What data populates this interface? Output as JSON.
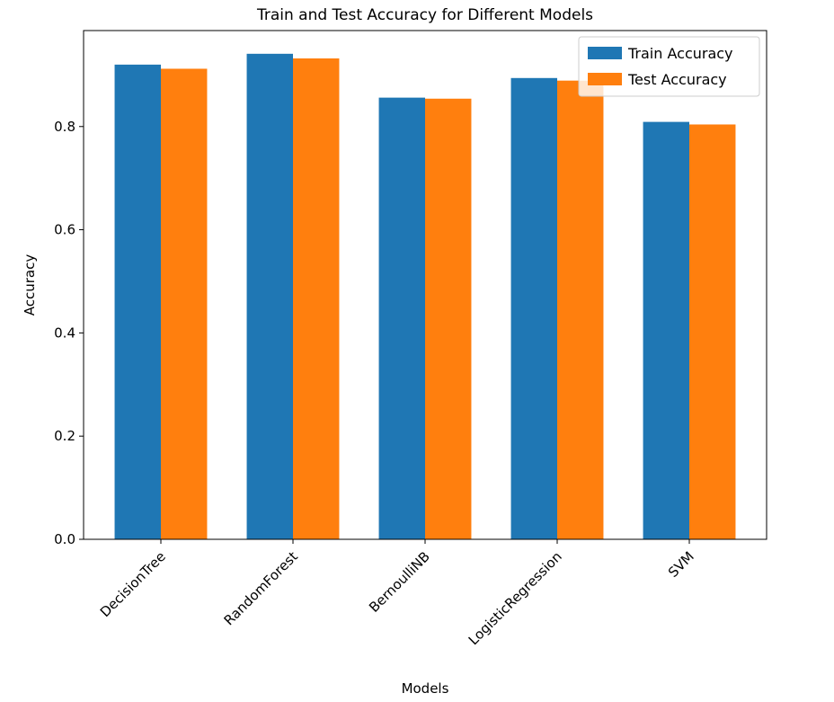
{
  "chart_data": {
    "type": "bar",
    "title": "Train and Test Accuracy for Different Models",
    "xlabel": "Models",
    "ylabel": "Accuracy",
    "categories": [
      "DecisionTree",
      "RandomForest",
      "BernoulliNB",
      "LogisticRegression",
      "SVM"
    ],
    "series": [
      {
        "name": "Train Accuracy",
        "color": "#1f77b4",
        "values": [
          0.92,
          0.941,
          0.856,
          0.894,
          0.809
        ]
      },
      {
        "name": "Test Accuracy",
        "color": "#ff7f0e",
        "values": [
          0.912,
          0.932,
          0.854,
          0.889,
          0.804
        ]
      }
    ],
    "ylim": [
      0,
      0.986
    ],
    "yticks": [
      0.0,
      0.2,
      0.4,
      0.6,
      0.8
    ],
    "ytick_labels": [
      "0.0",
      "0.2",
      "0.4",
      "0.6",
      "0.8"
    ],
    "grid": false,
    "legend_position": "top-right"
  }
}
